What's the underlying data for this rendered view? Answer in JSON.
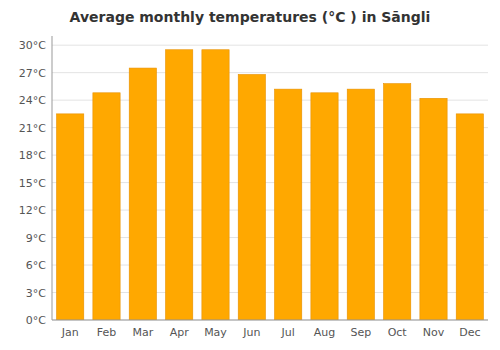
{
  "chart_data": {
    "type": "bar",
    "title": "Average monthly temperatures (°C ) in Sāngli",
    "categories": [
      "Jan",
      "Feb",
      "Mar",
      "Apr",
      "May",
      "Jun",
      "Jul",
      "Aug",
      "Sep",
      "Oct",
      "Nov",
      "Dec"
    ],
    "values": [
      22.5,
      24.8,
      27.5,
      29.5,
      29.5,
      26.8,
      25.2,
      24.8,
      25.2,
      25.8,
      24.2,
      22.5
    ],
    "color": "#FFA800",
    "ylim": [
      0,
      31
    ],
    "yticks": [
      {
        "value": 0,
        "label": "0°C"
      },
      {
        "value": 3,
        "label": "3°C"
      },
      {
        "value": 6,
        "label": "6°C"
      },
      {
        "value": 9,
        "label": "9°C"
      },
      {
        "value": 12,
        "label": "12°C"
      },
      {
        "value": 15,
        "label": "15°C"
      },
      {
        "value": 18,
        "label": "18°C"
      },
      {
        "value": 21,
        "label": "21°C"
      },
      {
        "value": 24,
        "label": "24°C"
      },
      {
        "value": 27,
        "label": "27°C"
      },
      {
        "value": 30,
        "label": "30°C"
      }
    ],
    "grid": true
  }
}
